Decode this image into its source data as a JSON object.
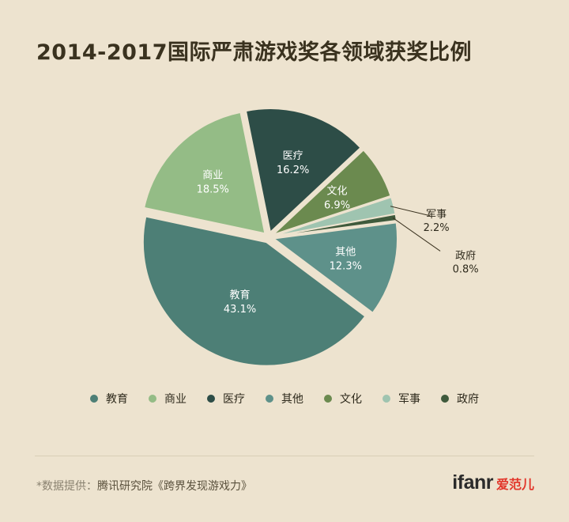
{
  "title": "2014-2017国际严肃游戏奖各领域获奖比例",
  "colors": {
    "background": "#ede3cf",
    "教育": "#4d7f76",
    "商业": "#94bc86",
    "医疗": "#2d4d47",
    "其他": "#5e918a",
    "文化": "#6b8a4f",
    "军事": "#9fc4b0",
    "政府": "#3f5a3c"
  },
  "chart_data": {
    "type": "pie",
    "slices": [
      {
        "label": "商业",
        "value": 18.5,
        "display": "18.5%",
        "color": "#94bc86"
      },
      {
        "label": "医疗",
        "value": 16.2,
        "display": "16.2%",
        "color": "#2d4d47"
      },
      {
        "label": "文化",
        "value": 6.9,
        "display": "6.9%",
        "color": "#6b8a4f"
      },
      {
        "label": "军事",
        "value": 2.2,
        "display": "2.2%",
        "color": "#9fc4b0"
      },
      {
        "label": "政府",
        "value": 0.8,
        "display": "0.8%",
        "color": "#3f5a3c"
      },
      {
        "label": "其他",
        "value": 12.3,
        "display": "12.3%",
        "color": "#5e918a"
      },
      {
        "label": "教育",
        "value": 43.1,
        "display": "43.1%",
        "color": "#4d7f76"
      }
    ],
    "legend": [
      "教育",
      "商业",
      "医疗",
      "其他",
      "文化",
      "军事",
      "政府"
    ],
    "legend_position": "bottom"
  },
  "source": {
    "prefix": "*数据提供：",
    "text": "腾讯研究院《跨界发现游戏力》"
  },
  "logo": {
    "en": "ifanr",
    "cn": "爱范儿"
  }
}
